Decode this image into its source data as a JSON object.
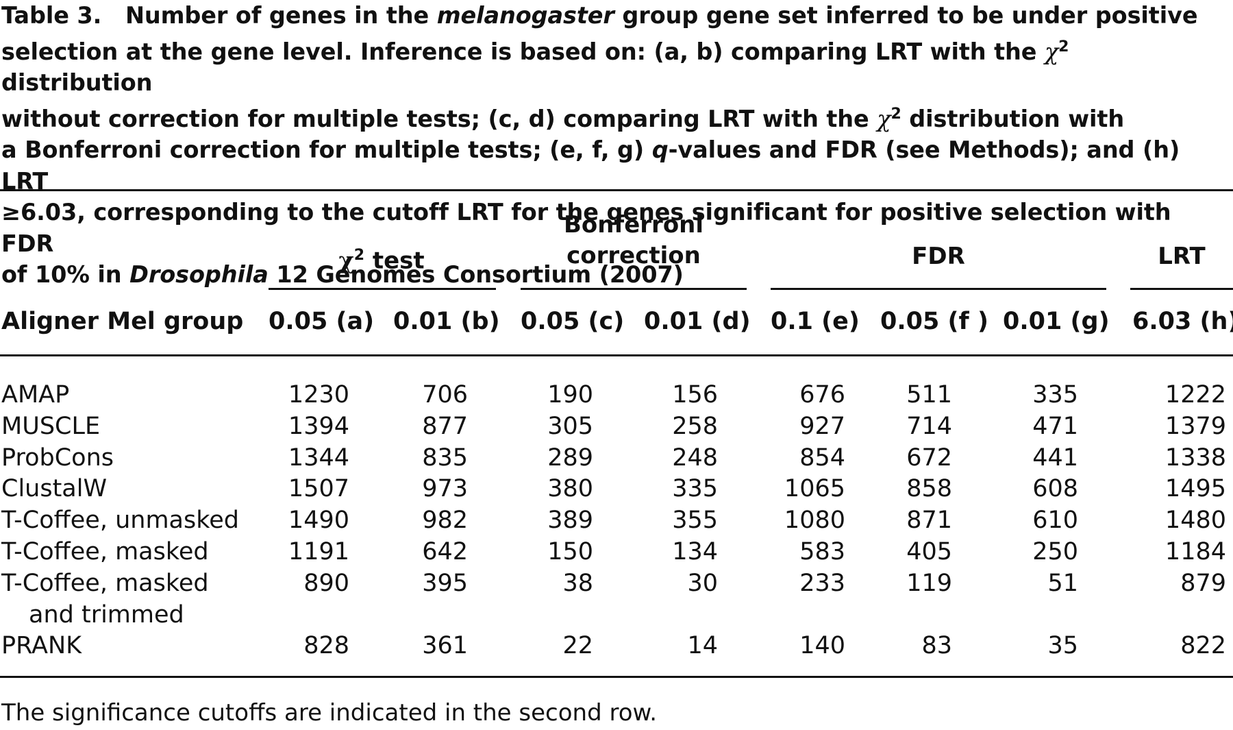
{
  "caption": {
    "label": "Table 3.",
    "line1_a": "Number of genes in the ",
    "line1_em": "melanogaster",
    "line1_b": " group gene set inferred to be under positive",
    "line2_a": "selection at the gene level. Inference is based on: (a, b) comparing LRT with the ",
    "chi": "χ",
    "sup": "2",
    "line2_b": " distribution",
    "line3_a": "without correction for multiple tests; (c, d) comparing LRT with the ",
    "line3_b": " distribution with",
    "line4_a": "a Bonferroni correction for multiple tests; (e, f, g) ",
    "line4_em": "q",
    "line4_b": "-values and FDR (see Methods); and (h) LRT",
    "line5": "≥6.03, corresponding to the cutoff LRT for the genes significant for positive selection with FDR",
    "line6_a": "of 10% in ",
    "line6_em": "Drosophila",
    "line6_b": " 12 Genomes Consortium (2007)"
  },
  "groups": {
    "chi_label": "χ",
    "chi_sup": "2",
    "chi_rest": " test",
    "bonferroni_line1": "Bonferroni",
    "bonferroni_line2": "correction",
    "fdr": "FDR",
    "lrt": "LRT"
  },
  "subheader": {
    "first": "Aligner Mel group",
    "cols": [
      "0.05 (a)",
      "0.01 (b)",
      "0.05 (c)",
      "0.01 (d)",
      "0.1 (e)",
      "0.05 (f )",
      "0.01 (g)",
      "6.03 (h)"
    ]
  },
  "rows": [
    {
      "label": "AMAP",
      "values": [
        "1230",
        "706",
        "190",
        "156",
        "676",
        "511",
        "335",
        "1222"
      ]
    },
    {
      "label": "MUSCLE",
      "values": [
        "1394",
        "877",
        "305",
        "258",
        "927",
        "714",
        "471",
        "1379"
      ]
    },
    {
      "label": "ProbCons",
      "values": [
        "1344",
        "835",
        "289",
        "248",
        "854",
        "672",
        "441",
        "1338"
      ]
    },
    {
      "label": "ClustalW",
      "values": [
        "1507",
        "973",
        "380",
        "335",
        "1065",
        "858",
        "608",
        "1495"
      ]
    },
    {
      "label": "T-Coffee, unmasked",
      "values": [
        "1490",
        "982",
        "389",
        "355",
        "1080",
        "871",
        "610",
        "1480"
      ]
    },
    {
      "label": "T-Coffee, masked",
      "values": [
        "1191",
        "642",
        "150",
        "134",
        "583",
        "405",
        "250",
        "1184"
      ]
    },
    {
      "label": "T-Coffee, masked",
      "label_cont": "and trimmed",
      "values": [
        "890",
        "395",
        "38",
        "30",
        "233",
        "119",
        "51",
        "879"
      ]
    },
    {
      "label": "PRANK",
      "values": [
        "828",
        "361",
        "22",
        "14",
        "140",
        "83",
        "35",
        "822"
      ]
    }
  ],
  "footnote": "The significance cutoffs are indicated in the second row."
}
